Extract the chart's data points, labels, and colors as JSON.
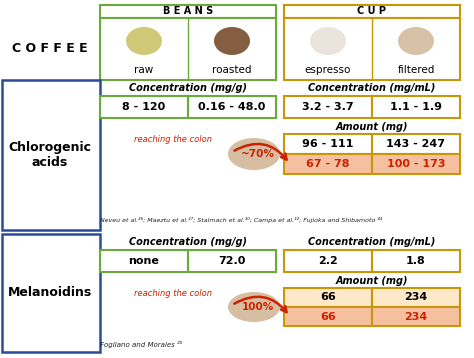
{
  "bg_color": "#ffffff",
  "beans_label": "B E A N S",
  "cup_label": "C U P",
  "coffee_label": "C O F F E E",
  "col_labels": [
    "raw",
    "roasted",
    "espresso",
    "filtered"
  ],
  "chlorogenic_label": "Chlorogenic\nacids",
  "melanoidins_label": "Melanoidins",
  "green_border": "#6aaa3b",
  "gold_border": "#c8960a",
  "blue_border": "#2a4a9a",
  "red_color": "#cc2200",
  "salmon_bg": "#f5c0a0",
  "white_bg": "#ffffff",
  "light_orange_bg": "#fde8c8",
  "black": "#000000",
  "conc_mg_g_label": "Concentration (mg/g)",
  "conc_mg_ml_label": "Concentration (mg/mL)",
  "amount_mg_label": "Amount (mg)",
  "chloro_conc_raw": "8 - 120",
  "chloro_conc_roasted": "0.16 - 48.0",
  "chloro_conc_espresso": "3.2 - 3.7",
  "chloro_conc_filtered": "1.1 - 1.9",
  "chloro_amount_top_espresso": "96 - 111",
  "chloro_amount_top_filtered": "143 - 247",
  "chloro_amount_bot_espresso": "67 - 78",
  "chloro_amount_bot_filtered": "100 - 173",
  "chloro_percent": "~70%",
  "chloro_reaching": "reaching the colon",
  "chloro_refs": "Neveu et al.²⁶; Maeztu et al.²⁷; Stalmach et al.³⁰; Campa et al.³²; Fujioka and Shibamoto ⁴³",
  "melano_conc_raw": "none",
  "melano_conc_roasted": "72.0",
  "melano_conc_espresso": "2.2",
  "melano_conc_filtered": "1.8",
  "melano_amount_top_espresso": "66",
  "melano_amount_top_filtered": "234",
  "melano_amount_bot_espresso": "66",
  "melano_amount_bot_filtered": "234",
  "melano_percent": "100%",
  "melano_reaching": "reaching the colon",
  "melano_refs": "Fogliano and Morales ²⁵",
  "tan_color": "#c8a882"
}
